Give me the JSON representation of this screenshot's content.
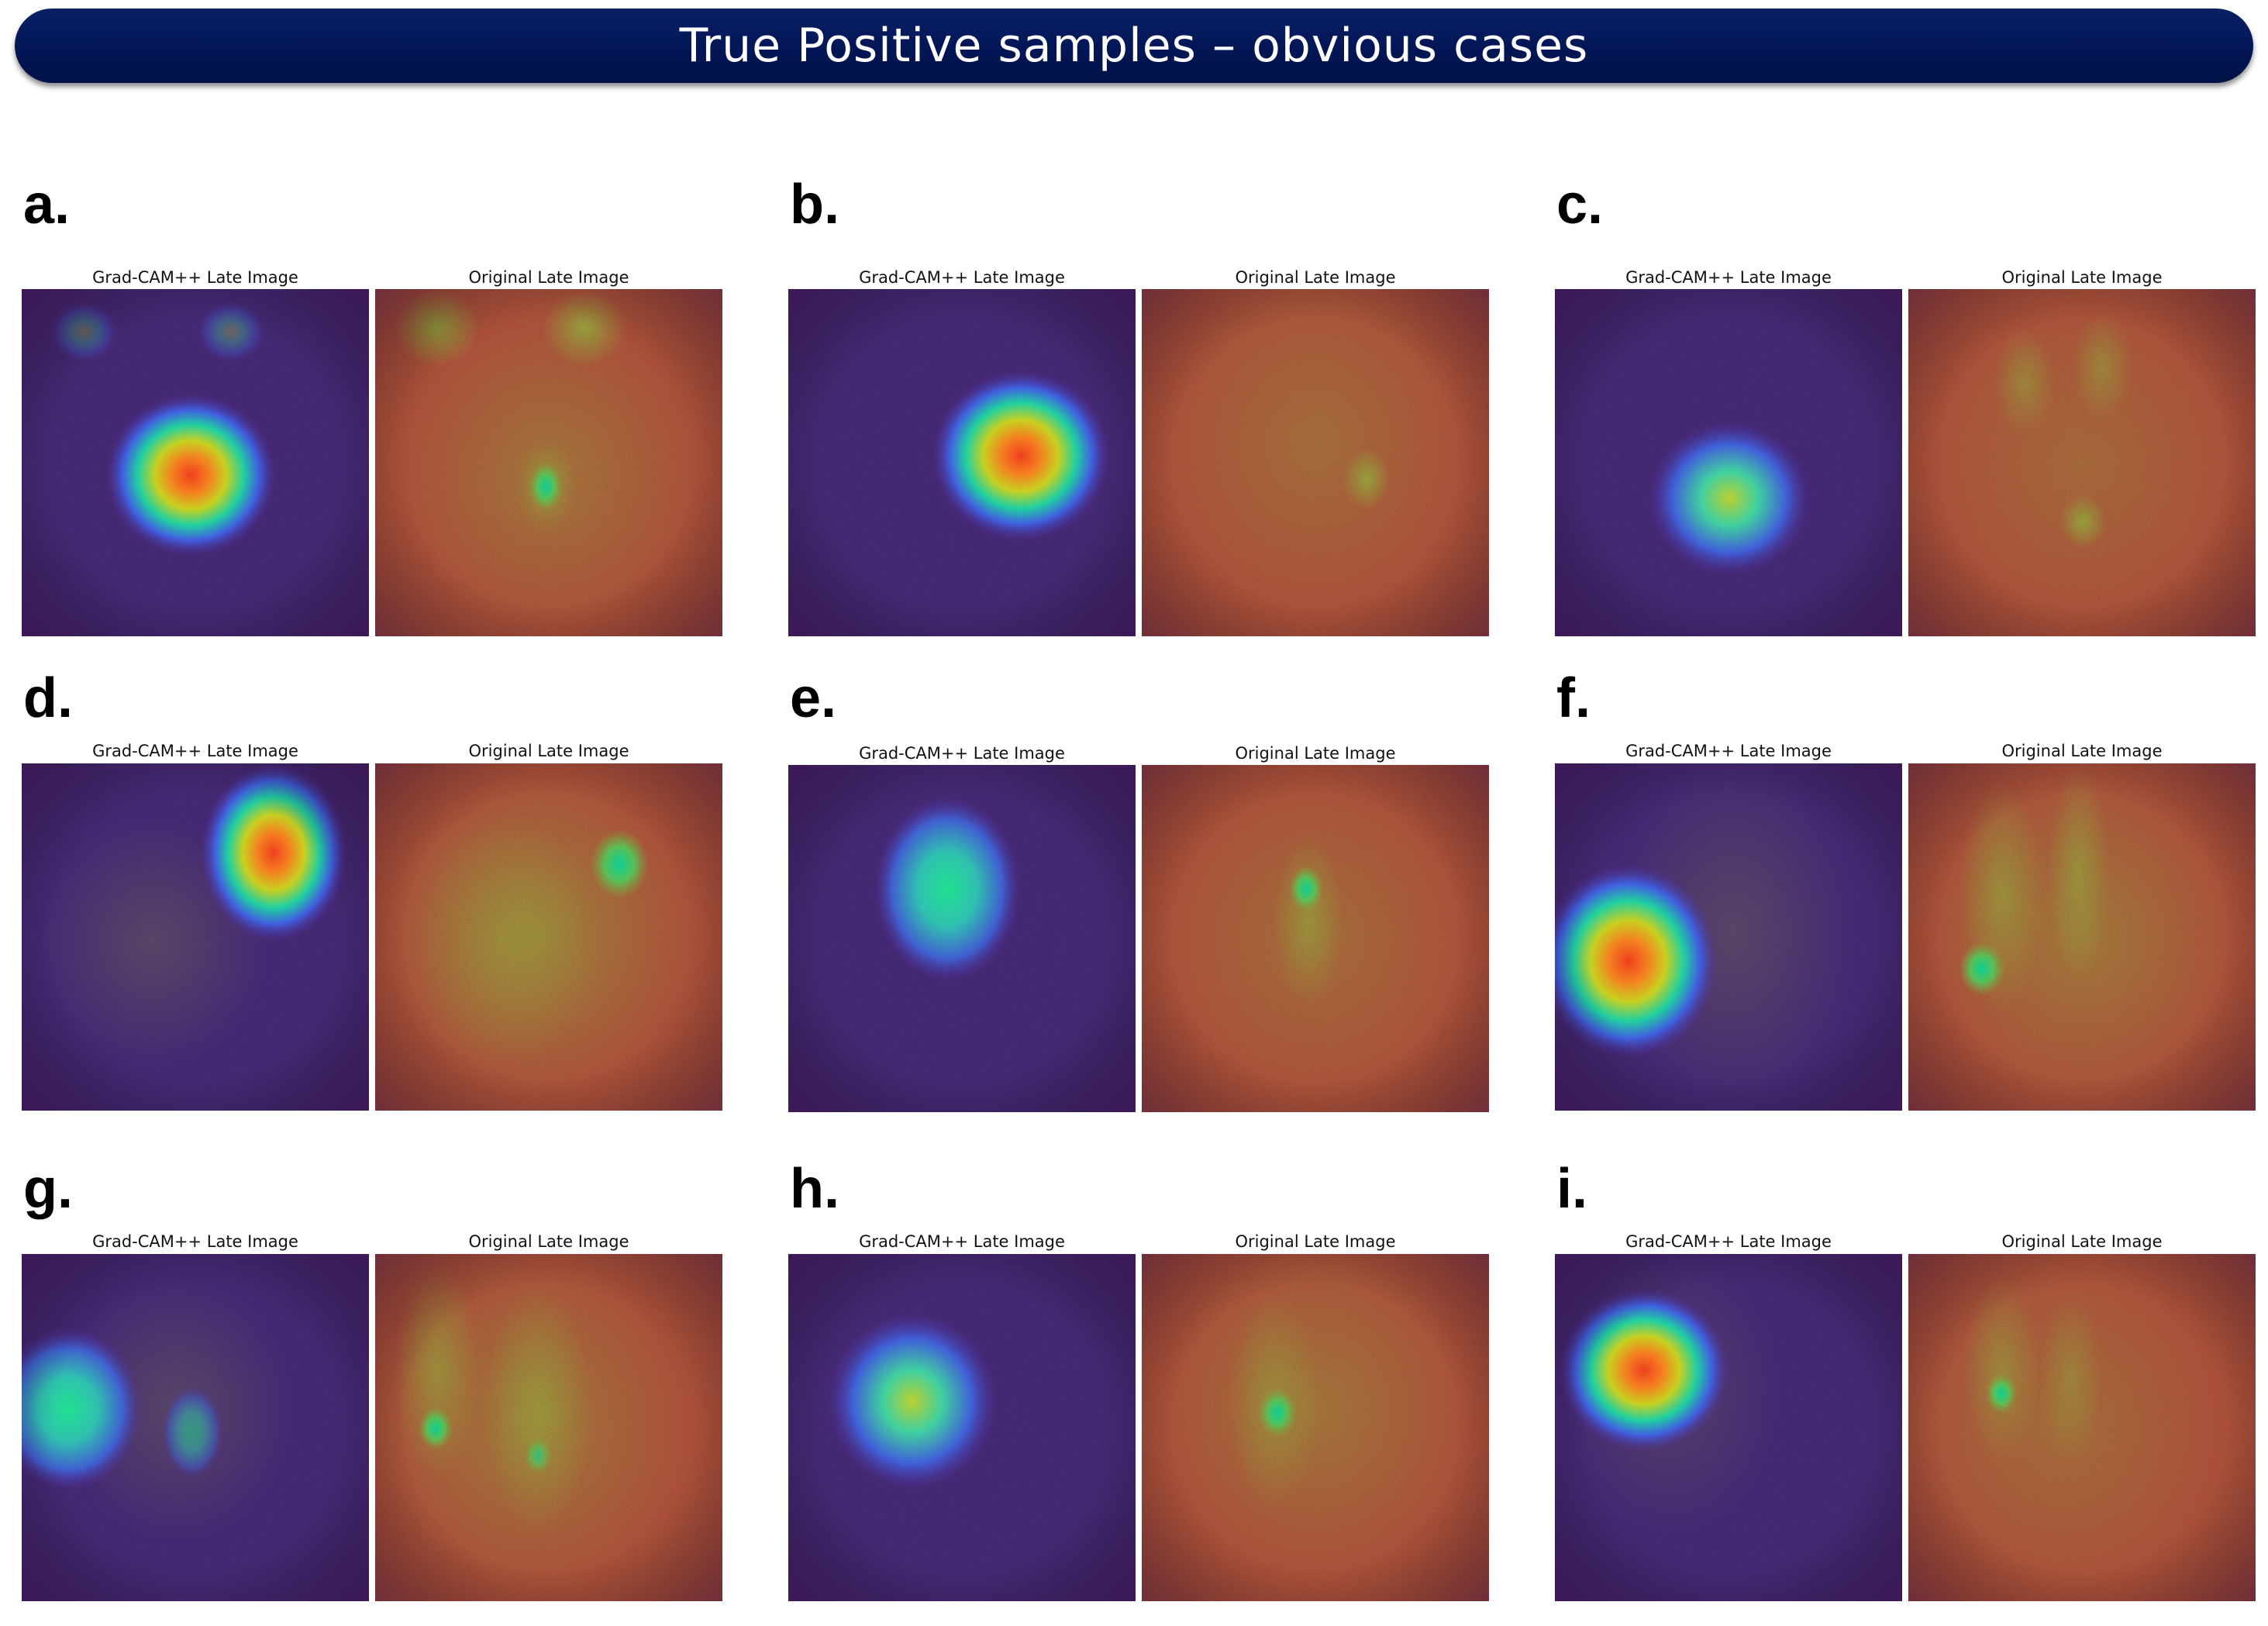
{
  "title": "True Positive samples – obvious cases",
  "colors": {
    "banner": "#021656",
    "cam_background": "#4b2c7d",
    "late_background": "#b8573f"
  },
  "panels": [
    {
      "letter": "a.",
      "left_caption": "Grad-CAM++ Late Image",
      "right_caption": "Original Late Image"
    },
    {
      "letter": "b.",
      "left_caption": "Grad-CAM++ Late Image",
      "right_caption": "Original Late Image"
    },
    {
      "letter": "c.",
      "left_caption": "Grad-CAM++ Late Image",
      "right_caption": "Original Late Image"
    },
    {
      "letter": "d.",
      "left_caption": "Grad-CAM++ Late Image",
      "right_caption": "Original Late Image"
    },
    {
      "letter": "e.",
      "left_caption": "Grad-CAM++ Late Image",
      "right_caption": "Original Late Image"
    },
    {
      "letter": "f.",
      "left_caption": "Grad-CAM++ Late Image",
      "right_caption": "Original Late Image"
    },
    {
      "letter": "g.",
      "left_caption": "Grad-CAM++ Late Image",
      "right_caption": "Original Late Image"
    },
    {
      "letter": "h.",
      "left_caption": "Grad-CAM++ Late Image",
      "right_caption": "Original Late Image"
    },
    {
      "letter": "i.",
      "left_caption": "Grad-CAM++ Late Image",
      "right_caption": "Original Late Image"
    }
  ]
}
